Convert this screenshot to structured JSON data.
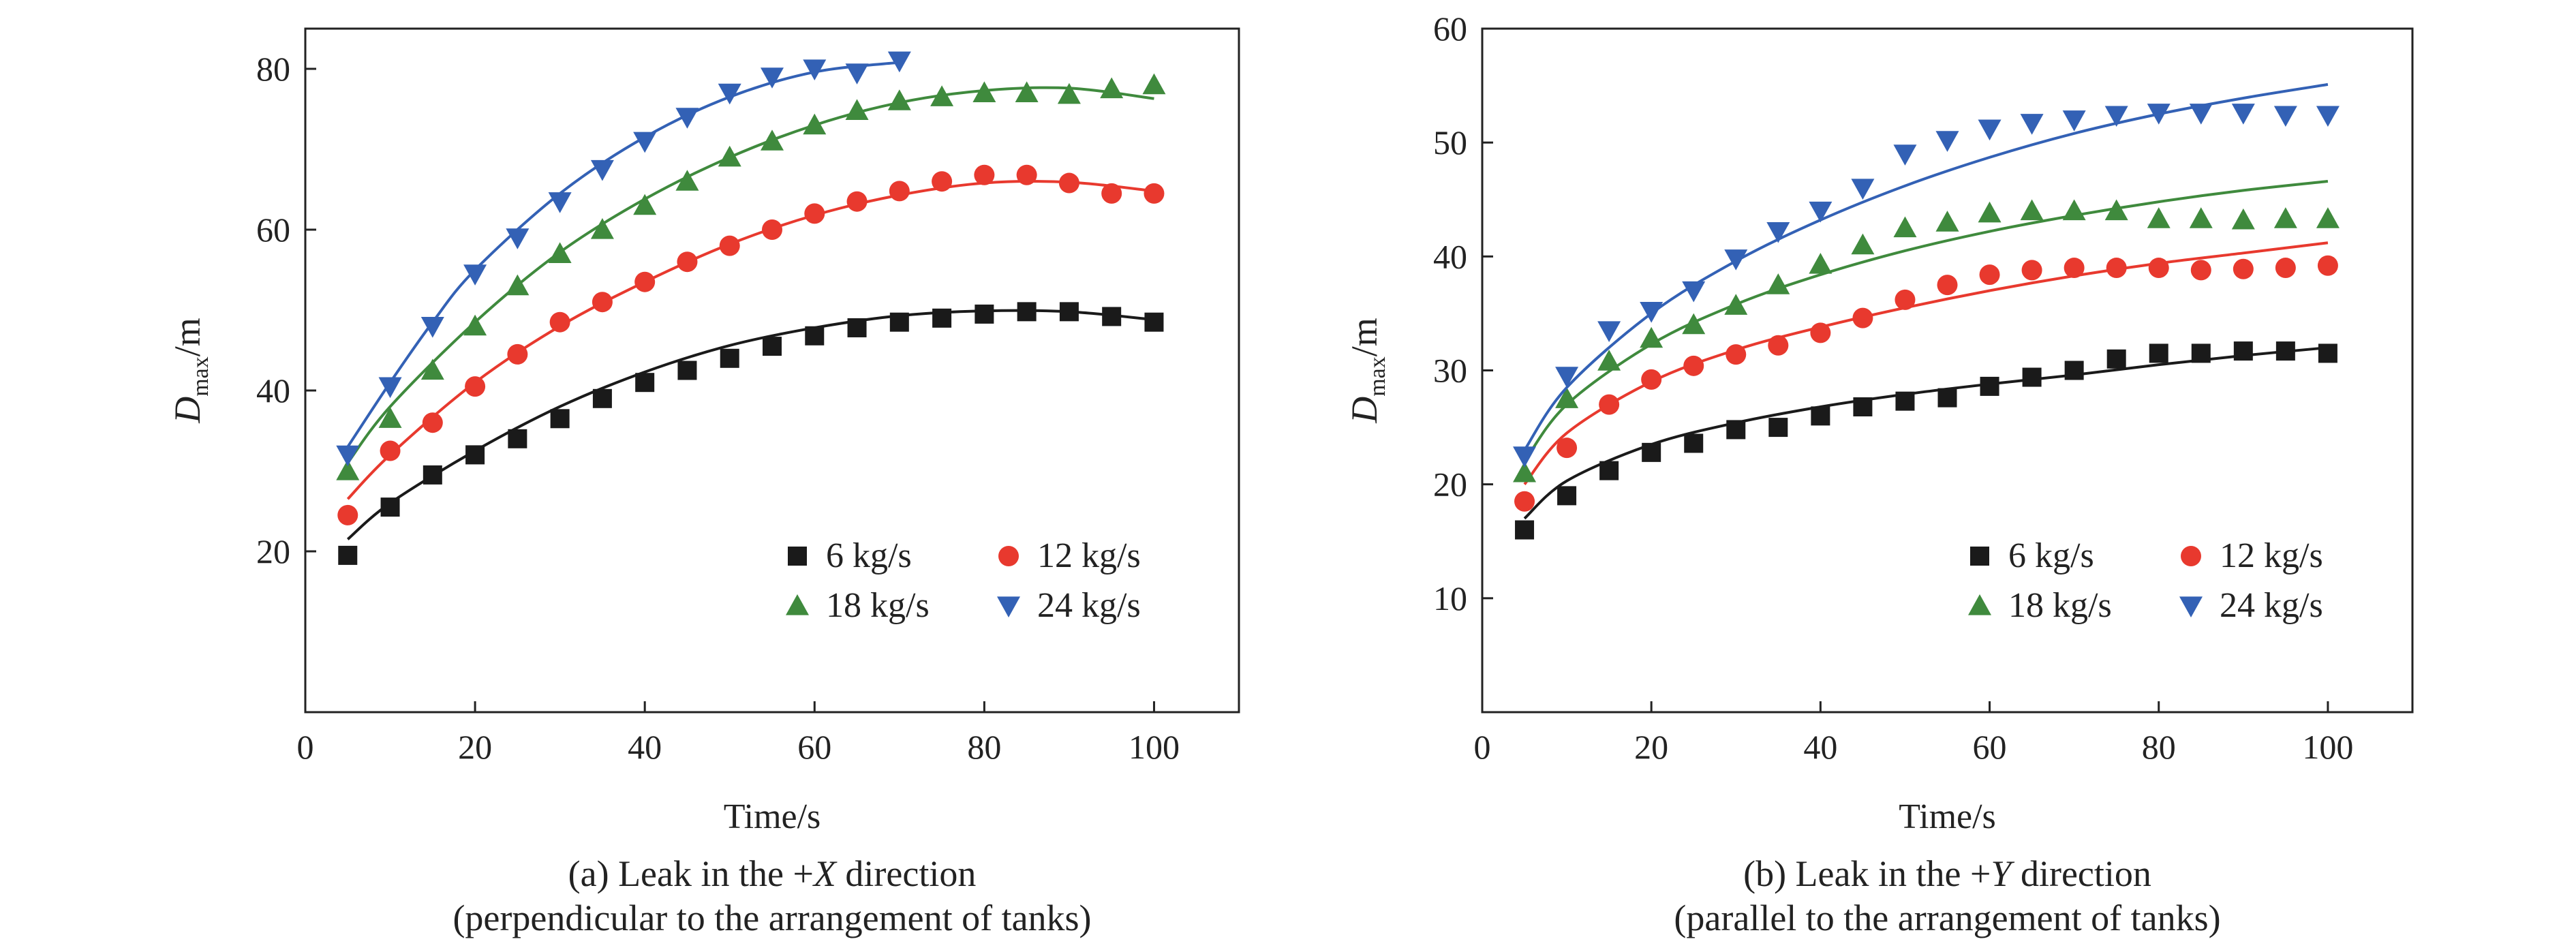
{
  "colors": {
    "axis": "#222222",
    "s6": "#1a1a1a",
    "s12": "#e8392e",
    "s18": "#3f8a3d",
    "s24": "#3361b5"
  },
  "chart_data": [
    {
      "type": "scatter",
      "xlabel": "Time/s",
      "ylabel_main": "D",
      "ylabel_sub": "max",
      "ylabel_unit": "/m",
      "xlim": [
        0,
        110
      ],
      "ylim": [
        0,
        85
      ],
      "x_ticks": [
        0,
        20,
        40,
        60,
        80,
        100
      ],
      "y_ticks": [
        20,
        40,
        60,
        80
      ],
      "caption_line1_pre": "(a) Leak in the +",
      "caption_line1_var": "X",
      "caption_line1_post": " direction",
      "caption_line2": "(perpendicular to the arrangement of tanks)",
      "legend_placement": "bottom-right",
      "series": [
        {
          "name": "6 kg/s",
          "marker": "square",
          "color": "#1a1a1a",
          "x": [
            5,
            10,
            15,
            20,
            25,
            30,
            35,
            40,
            45,
            50,
            55,
            60,
            65,
            70,
            75,
            80,
            85,
            90,
            95,
            100
          ],
          "y": [
            19.5,
            25.5,
            29.5,
            32,
            34,
            36.5,
            39,
            41,
            42.5,
            44,
            45.5,
            46.8,
            47.8,
            48.5,
            49,
            49.5,
            49.8,
            49.8,
            49.2,
            48.5
          ],
          "fit": [
            [
              5,
              21.5
            ],
            [
              10,
              26
            ],
            [
              20,
              32.5
            ],
            [
              30,
              38
            ],
            [
              40,
              42.3
            ],
            [
              50,
              45.6
            ],
            [
              60,
              47.8
            ],
            [
              70,
              49.3
            ],
            [
              80,
              49.9
            ],
            [
              90,
              49.8
            ],
            [
              100,
              48.8
            ]
          ]
        },
        {
          "name": "12 kg/s",
          "marker": "circle",
          "color": "#e8392e",
          "x": [
            5,
            10,
            15,
            20,
            25,
            30,
            35,
            40,
            45,
            50,
            55,
            60,
            65,
            70,
            75,
            80,
            85,
            90,
            95,
            100
          ],
          "y": [
            24.5,
            32.5,
            36,
            40.5,
            44.5,
            48.5,
            51,
            53.5,
            56,
            58,
            60,
            62,
            63.5,
            64.8,
            66,
            66.8,
            66.8,
            65.8,
            64.5,
            64.5
          ],
          "fit": [
            [
              5,
              26.5
            ],
            [
              10,
              32
            ],
            [
              20,
              41
            ],
            [
              30,
              48
            ],
            [
              40,
              53.5
            ],
            [
              50,
              58.2
            ],
            [
              60,
              61.8
            ],
            [
              70,
              64.3
            ],
            [
              80,
              65.8
            ],
            [
              90,
              65.9
            ],
            [
              100,
              64.8
            ]
          ]
        },
        {
          "name": "18 kg/s",
          "marker": "triangle-up",
          "color": "#3f8a3d",
          "x": [
            5,
            10,
            15,
            20,
            25,
            30,
            35,
            40,
            45,
            50,
            55,
            60,
            65,
            70,
            75,
            80,
            85,
            90,
            95,
            100
          ],
          "y": [
            30,
            36.5,
            42.5,
            48,
            53,
            57,
            60,
            63,
            66,
            69,
            71,
            73,
            74.8,
            76,
            76.5,
            77,
            77,
            76.8,
            77.5,
            78
          ],
          "fit": [
            [
              5,
              31
            ],
            [
              10,
              38
            ],
            [
              20,
              48.5
            ],
            [
              30,
              57.2
            ],
            [
              40,
              63.8
            ],
            [
              50,
              69
            ],
            [
              60,
              73
            ],
            [
              70,
              75.8
            ],
            [
              80,
              77.3
            ],
            [
              90,
              77.6
            ],
            [
              100,
              76.3
            ]
          ]
        },
        {
          "name": "24 kg/s",
          "marker": "triangle-down",
          "color": "#3361b5",
          "x": [
            5,
            10,
            15,
            20,
            25,
            30,
            35,
            40,
            45,
            50,
            55,
            60,
            65,
            70
          ],
          "y": [
            32,
            40.5,
            48,
            54.5,
            59,
            63.5,
            67.5,
            71,
            74,
            77,
            79,
            80,
            79.5,
            81
          ],
          "fit": [
            [
              5,
              33
            ],
            [
              10,
              41
            ],
            [
              15,
              48.5
            ],
            [
              20,
              55
            ],
            [
              30,
              64.5
            ],
            [
              40,
              71.5
            ],
            [
              50,
              76.5
            ],
            [
              60,
              79.6
            ],
            [
              70,
              80.8
            ]
          ]
        }
      ]
    },
    {
      "type": "scatter",
      "xlabel": "Time/s",
      "ylabel_main": "D",
      "ylabel_sub": "max",
      "ylabel_unit": "/m",
      "xlim": [
        0,
        110
      ],
      "ylim": [
        0,
        60
      ],
      "x_ticks": [
        0,
        20,
        40,
        60,
        80,
        100
      ],
      "y_ticks": [
        10,
        20,
        30,
        40,
        50,
        60
      ],
      "caption_line1_pre": "(b) Leak in the +",
      "caption_line1_var": "Y",
      "caption_line1_post": " direction",
      "caption_line2": "(parallel to the arrangement of tanks)",
      "legend_placement": "bottom-right",
      "series": [
        {
          "name": "6 kg/s",
          "marker": "square",
          "color": "#1a1a1a",
          "x": [
            5,
            10,
            15,
            20,
            25,
            30,
            35,
            40,
            45,
            50,
            55,
            60,
            65,
            70,
            75,
            80,
            85,
            90,
            95,
            100
          ],
          "y": [
            16,
            19,
            21.2,
            22.8,
            23.6,
            24.8,
            25,
            26,
            26.8,
            27.3,
            27.6,
            28.6,
            29.4,
            30,
            31,
            31.5,
            31.5,
            31.7,
            31.7,
            31.5
          ],
          "fit": [
            [
              5,
              17
            ],
            [
              10,
              20.3
            ],
            [
              20,
              23.5
            ],
            [
              30,
              25.4
            ],
            [
              40,
              26.8
            ],
            [
              50,
              27.9
            ],
            [
              60,
              28.8
            ],
            [
              70,
              29.6
            ],
            [
              80,
              30.5
            ],
            [
              90,
              31.3
            ],
            [
              100,
              32
            ]
          ]
        },
        {
          "name": "12 kg/s",
          "marker": "circle",
          "color": "#e8392e",
          "x": [
            5,
            10,
            15,
            20,
            25,
            30,
            35,
            40,
            45,
            50,
            55,
            60,
            65,
            70,
            75,
            80,
            85,
            90,
            95,
            100
          ],
          "y": [
            18.5,
            23.2,
            27,
            29.2,
            30.4,
            31.4,
            32.2,
            33.3,
            34.6,
            36.2,
            37.5,
            38.4,
            38.8,
            39,
            39,
            39,
            38.8,
            38.9,
            39,
            39.2
          ],
          "fit": [
            [
              5,
              20
            ],
            [
              10,
              24.5
            ],
            [
              20,
              29
            ],
            [
              30,
              31.8
            ],
            [
              40,
              33.8
            ],
            [
              50,
              35.5
            ],
            [
              60,
              37
            ],
            [
              70,
              38.3
            ],
            [
              80,
              39.4
            ],
            [
              90,
              40.3
            ],
            [
              100,
              41.2
            ]
          ]
        },
        {
          "name": "18 kg/s",
          "marker": "triangle-up",
          "color": "#3f8a3d",
          "x": [
            5,
            10,
            15,
            20,
            25,
            30,
            35,
            40,
            45,
            50,
            55,
            60,
            65,
            70,
            75,
            80,
            85,
            90,
            95,
            100
          ],
          "y": [
            21,
            27.5,
            30.8,
            32.8,
            34,
            35.7,
            37.5,
            39.3,
            41,
            42.5,
            43,
            43.8,
            44,
            44,
            44,
            43.3,
            43.3,
            43.2,
            43.3,
            43.3
          ],
          "fit": [
            [
              5,
              22
            ],
            [
              10,
              27
            ],
            [
              20,
              32.3
            ],
            [
              30,
              35.8
            ],
            [
              40,
              38.4
            ],
            [
              50,
              40.5
            ],
            [
              60,
              42.2
            ],
            [
              70,
              43.6
            ],
            [
              80,
              44.8
            ],
            [
              90,
              45.8
            ],
            [
              100,
              46.6
            ]
          ]
        },
        {
          "name": "24 kg/s",
          "marker": "triangle-down",
          "color": "#3361b5",
          "x": [
            5,
            10,
            15,
            20,
            25,
            30,
            35,
            40,
            45,
            50,
            55,
            60,
            65,
            70,
            75,
            80,
            85,
            90,
            95,
            100
          ],
          "y": [
            22.5,
            29.5,
            33.5,
            35.2,
            37,
            39.8,
            42.2,
            44,
            46,
            49,
            50.2,
            51.2,
            51.7,
            52,
            52.4,
            52.6,
            52.6,
            52.6,
            52.4,
            52.4
          ],
          "fit": [
            [
              5,
              23
            ],
            [
              10,
              28.5
            ],
            [
              20,
              35
            ],
            [
              30,
              39.6
            ],
            [
              40,
              43.2
            ],
            [
              50,
              46.2
            ],
            [
              60,
              48.7
            ],
            [
              70,
              50.8
            ],
            [
              80,
              52.5
            ],
            [
              90,
              53.9
            ],
            [
              100,
              55.1
            ]
          ]
        }
      ]
    }
  ]
}
